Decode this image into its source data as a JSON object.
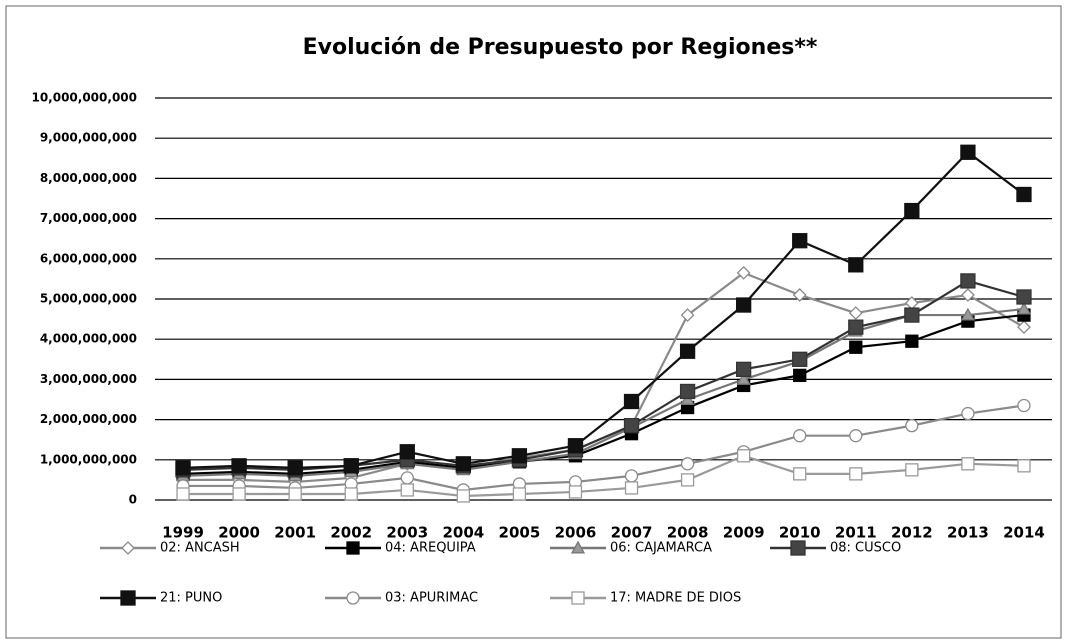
{
  "chart_data": {
    "type": "line",
    "title": "Evolución de Presupuesto por Regiones**",
    "categories": [
      "1999",
      "2000",
      "2001",
      "2002",
      "2003",
      "2004",
      "2005",
      "2006",
      "2007",
      "2008",
      "2009",
      "2010",
      "2011",
      "2012",
      "2013",
      "2014"
    ],
    "ylim": [
      0,
      10000000000
    ],
    "yticks": [
      0,
      {
        "value": 1000000000,
        "label": "1,000,000,000"
      },
      {
        "value": 2000000000,
        "label": "2,000,000,000"
      },
      {
        "value": 3000000000,
        "label": "3,000,000,000"
      },
      {
        "value": 4000000000,
        "label": "4,000,000,000"
      },
      {
        "value": 5000000000,
        "label": "5,000,000,000"
      },
      {
        "value": 6000000000,
        "label": "6,000,000,000"
      },
      {
        "value": 7000000000,
        "label": "7,000,000,000"
      },
      {
        "value": 8000000000,
        "label": "8,000,000,000"
      },
      {
        "value": 9000000000,
        "label": "9,000,000,000"
      },
      {
        "value": 10000000000,
        "label": "10,000,000,000"
      }
    ],
    "grid": true,
    "legend": "bottom",
    "series": [
      {
        "name": "02: ANCASH",
        "color": "#8a8a8a",
        "marker": "diamond",
        "marker_fill": "#ffffff",
        "values": [
          500000000,
          500000000,
          450000000,
          550000000,
          900000000,
          800000000,
          1050000000,
          1250000000,
          1850000000,
          4600000000,
          5650000000,
          5100000000,
          4650000000,
          4900000000,
          5100000000,
          4300000000
        ]
      },
      {
        "name": "04: AREQUIPA",
        "color": "#000000",
        "marker": "square",
        "marker_fill": "#000000",
        "values": [
          650000000,
          700000000,
          650000000,
          750000000,
          950000000,
          800000000,
          950000000,
          1100000000,
          1650000000,
          2300000000,
          2850000000,
          3100000000,
          3800000000,
          3950000000,
          4450000000,
          4600000000
        ]
      },
      {
        "name": "06: CAJAMARCA",
        "color": "#777777",
        "marker": "triangle",
        "marker_fill": "#999999",
        "values": [
          600000000,
          650000000,
          600000000,
          700000000,
          900000000,
          750000000,
          950000000,
          1150000000,
          1800000000,
          2500000000,
          3000000000,
          3450000000,
          4200000000,
          4600000000,
          4600000000,
          4750000000
        ]
      },
      {
        "name": "08: CUSCO",
        "color": "#333333",
        "marker": "square",
        "marker_fill": "#444444",
        "values": [
          750000000,
          800000000,
          750000000,
          850000000,
          1000000000,
          850000000,
          1000000000,
          1250000000,
          1850000000,
          2700000000,
          3250000000,
          3500000000,
          4300000000,
          4600000000,
          5450000000,
          5050000000
        ]
      },
      {
        "name": "21: PUNO",
        "color": "#111111",
        "marker": "square",
        "marker_fill": "#111111",
        "values": [
          800000000,
          850000000,
          800000000,
          850000000,
          1200000000,
          900000000,
          1100000000,
          1350000000,
          2450000000,
          3700000000,
          4850000000,
          6450000000,
          5850000000,
          7200000000,
          8650000000,
          7600000000
        ]
      },
      {
        "name": "03: APURIMAC",
        "color": "#8a8a8a",
        "marker": "circle",
        "marker_fill": "#ffffff",
        "values": [
          350000000,
          350000000,
          300000000,
          400000000,
          550000000,
          250000000,
          400000000,
          450000000,
          600000000,
          900000000,
          1200000000,
          1600000000,
          1600000000,
          1850000000,
          2150000000,
          2350000000
        ]
      },
      {
        "name": "17: MADRE DE DIOS",
        "color": "#9a9a9a",
        "marker": "square",
        "marker_fill": "#ffffff",
        "values": [
          150000000,
          150000000,
          150000000,
          150000000,
          250000000,
          100000000,
          150000000,
          200000000,
          300000000,
          500000000,
          1100000000,
          650000000,
          650000000,
          750000000,
          900000000,
          850000000
        ]
      }
    ]
  }
}
